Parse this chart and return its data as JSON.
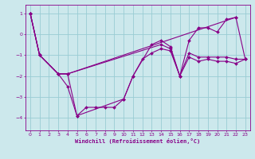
{
  "xlabel": "Windchill (Refroidissement éolien,°C)",
  "bg_color": "#cce8ec",
  "line_color": "#880088",
  "grid_color": "#99ccd4",
  "xlim": [
    -0.5,
    23.5
  ],
  "ylim": [
    -4.6,
    1.4
  ],
  "yticks": [
    1,
    0,
    -1,
    -2,
    -3,
    -4
  ],
  "xticks": [
    0,
    1,
    2,
    3,
    4,
    5,
    6,
    7,
    8,
    9,
    10,
    11,
    12,
    13,
    14,
    15,
    16,
    17,
    18,
    19,
    20,
    21,
    22,
    23
  ],
  "lines": [
    {
      "x": [
        0,
        1,
        3,
        4,
        5,
        10,
        11,
        13,
        14,
        15,
        16,
        17,
        18,
        19,
        20,
        21,
        22,
        23
      ],
      "y": [
        1.0,
        -1.0,
        -1.9,
        -2.5,
        -3.9,
        -3.1,
        -2.0,
        -0.5,
        -0.3,
        -0.6,
        -2.0,
        -0.3,
        0.3,
        0.3,
        0.1,
        0.7,
        0.8,
        -1.2
      ]
    },
    {
      "x": [
        0,
        1,
        3,
        4,
        5,
        6,
        7,
        8,
        9,
        10,
        11,
        12,
        13,
        14,
        15,
        16,
        17,
        18,
        19,
        20,
        21,
        22,
        23
      ],
      "y": [
        1.0,
        -1.0,
        -1.9,
        -1.9,
        -3.9,
        -3.5,
        -3.5,
        -3.5,
        -3.5,
        -3.1,
        -2.0,
        -1.2,
        -0.9,
        -0.7,
        -0.8,
        -2.0,
        -0.9,
        -1.1,
        -1.1,
        -1.1,
        -1.1,
        -1.2,
        -1.2
      ]
    },
    {
      "x": [
        0,
        1,
        3,
        4,
        14,
        15,
        16,
        17,
        18,
        19,
        20,
        21,
        22,
        23
      ],
      "y": [
        1.0,
        -1.0,
        -1.9,
        -1.9,
        -0.5,
        -0.7,
        -2.0,
        -1.1,
        -1.3,
        -1.2,
        -1.3,
        -1.3,
        -1.4,
        -1.2
      ]
    },
    {
      "x": [
        0,
        1,
        3,
        4,
        22
      ],
      "y": [
        1.0,
        -1.0,
        -1.9,
        -1.9,
        0.8
      ]
    }
  ]
}
